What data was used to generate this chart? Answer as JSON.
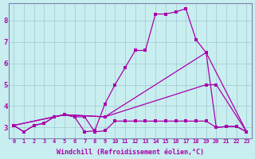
{
  "xlabel": "Windchill (Refroidissement éolien,°C)",
  "background_color": "#c8eef0",
  "grid_color": "#a0c8d0",
  "line_color": "#aa00aa",
  "xlim": [
    -0.5,
    23.5
  ],
  "ylim": [
    2.5,
    8.8
  ],
  "xticks": [
    0,
    1,
    2,
    3,
    4,
    5,
    6,
    7,
    8,
    9,
    10,
    11,
    12,
    13,
    14,
    15,
    16,
    17,
    18,
    19,
    20,
    21,
    22,
    23
  ],
  "yticks": [
    3,
    4,
    5,
    6,
    7,
    8
  ],
  "line1_x": [
    0,
    1,
    2,
    3,
    4,
    5,
    6,
    7,
    8,
    9,
    10,
    11,
    12,
    13,
    14,
    15,
    16,
    17,
    18,
    19,
    20,
    21,
    22,
    23
  ],
  "line1_y": [
    3.1,
    2.8,
    3.1,
    3.2,
    3.5,
    3.6,
    3.5,
    2.8,
    2.85,
    4.1,
    5.0,
    5.8,
    6.6,
    6.6,
    8.3,
    8.3,
    8.4,
    8.55,
    7.1,
    6.5,
    3.0,
    3.05,
    3.05,
    2.8
  ],
  "line2_x": [
    0,
    4,
    5,
    9,
    19,
    23
  ],
  "line2_y": [
    3.1,
    3.5,
    3.6,
    3.5,
    6.5,
    2.8
  ],
  "line3_x": [
    0,
    4,
    5,
    9,
    19,
    20,
    23
  ],
  "line3_y": [
    3.1,
    3.5,
    3.6,
    3.5,
    5.0,
    5.0,
    2.8
  ],
  "line4_x": [
    0,
    1,
    2,
    3,
    4,
    5,
    6,
    7,
    8,
    9,
    10,
    11,
    12,
    13,
    14,
    15,
    16,
    17,
    18,
    19,
    20,
    21,
    22,
    23
  ],
  "line4_y": [
    3.1,
    2.8,
    3.1,
    3.2,
    3.5,
    3.6,
    3.5,
    3.5,
    2.8,
    2.85,
    3.3,
    3.3,
    3.3,
    3.3,
    3.3,
    3.3,
    3.3,
    3.3,
    3.3,
    3.3,
    3.0,
    3.05,
    3.05,
    2.8
  ]
}
